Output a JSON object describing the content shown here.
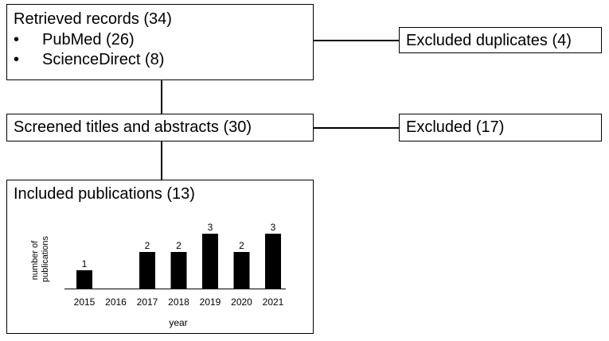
{
  "retrieved": {
    "title": "Retrieved records (34)",
    "sources": [
      {
        "bullet": "•",
        "label": "PubMed (26)"
      },
      {
        "bullet": "•",
        "label": "ScienceDirect (8)"
      }
    ]
  },
  "excluded_duplicates": {
    "label": "Excluded duplicates (4)"
  },
  "screened": {
    "label": "Screened titles and abstracts (30)"
  },
  "excluded": {
    "label": "Excluded (17)"
  },
  "included": {
    "title": "Included publications (13)"
  },
  "chart_data": {
    "type": "bar",
    "categories": [
      "2015",
      "2016",
      "2017",
      "2018",
      "2019",
      "2020",
      "2021"
    ],
    "values": [
      1,
      0,
      2,
      2,
      3,
      2,
      3
    ],
    "data_labels": [
      "1",
      "",
      "2",
      "2",
      "3",
      "2",
      "3"
    ],
    "xlabel": "year",
    "ylabel": "number of publications",
    "ylabel_lines": [
      "number of",
      "publications"
    ],
    "ylim": [
      0,
      3
    ],
    "bar_color": "#000000",
    "grid": false,
    "legend": "none"
  }
}
